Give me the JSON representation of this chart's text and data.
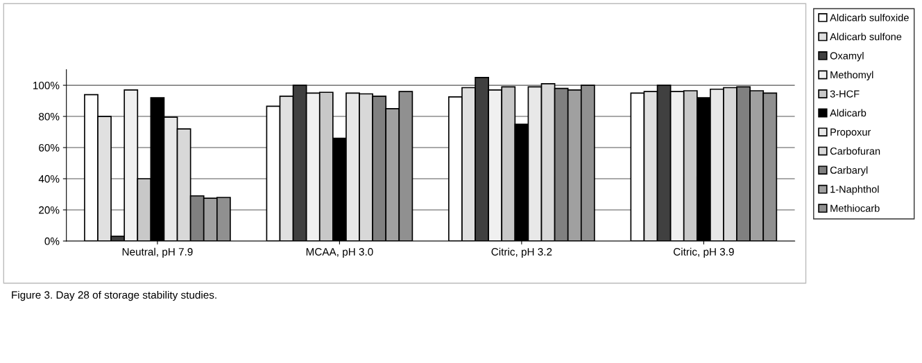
{
  "chart_data": {
    "type": "bar",
    "categories": [
      "Neutral, pH 7.9",
      "MCAA, pH 3.0",
      "Citric, pH 3.2",
      "Citric, pH 3.9"
    ],
    "series": [
      {
        "name": "Aldicarb sulfoxide",
        "color": "#ffffff",
        "values": [
          94,
          86.5,
          92.5,
          95
        ]
      },
      {
        "name": "Aldicarb sulfone",
        "color": "#e0e0e0",
        "values": [
          80,
          93,
          98.5,
          96
        ]
      },
      {
        "name": "Oxamyl",
        "color": "#404040",
        "values": [
          3,
          100,
          105,
          100
        ]
      },
      {
        "name": "Methomyl",
        "color": "#f0f0f0",
        "values": [
          97,
          95,
          97,
          96
        ]
      },
      {
        "name": "3-HCF",
        "color": "#c8c8c8",
        "values": [
          40,
          95.5,
          99,
          96.5
        ]
      },
      {
        "name": "Aldicarb",
        "color": "#000000",
        "values": [
          92,
          66,
          75,
          92
        ]
      },
      {
        "name": "Propoxur",
        "color": "#e8e8e8",
        "values": [
          79.5,
          95,
          99,
          97.5
        ]
      },
      {
        "name": "Carbofuran",
        "color": "#d8d8d8",
        "values": [
          72,
          94.5,
          101,
          98.5
        ]
      },
      {
        "name": "Carbaryl",
        "color": "#808080",
        "values": [
          29,
          93,
          98,
          99
        ]
      },
      {
        "name": "1-Naphthol",
        "color": "#a0a0a0",
        "values": [
          27.5,
          85,
          97,
          96.5
        ]
      },
      {
        "name": "Methiocarb",
        "color": "#909090",
        "values": [
          28,
          96,
          100,
          95
        ]
      }
    ],
    "ylim": [
      0,
      110
    ],
    "yticks": [
      {
        "value": 0,
        "label": "0%"
      },
      {
        "value": 20,
        "label": "20%"
      },
      {
        "value": 40,
        "label": "40%"
      },
      {
        "value": 60,
        "label": "60%"
      },
      {
        "value": 80,
        "label": "80%"
      },
      {
        "value": 100,
        "label": "100%"
      }
    ],
    "grid": "y",
    "legend": "right",
    "annotations": [
      "Figure 3. Day 28 of storage stability studies."
    ]
  }
}
